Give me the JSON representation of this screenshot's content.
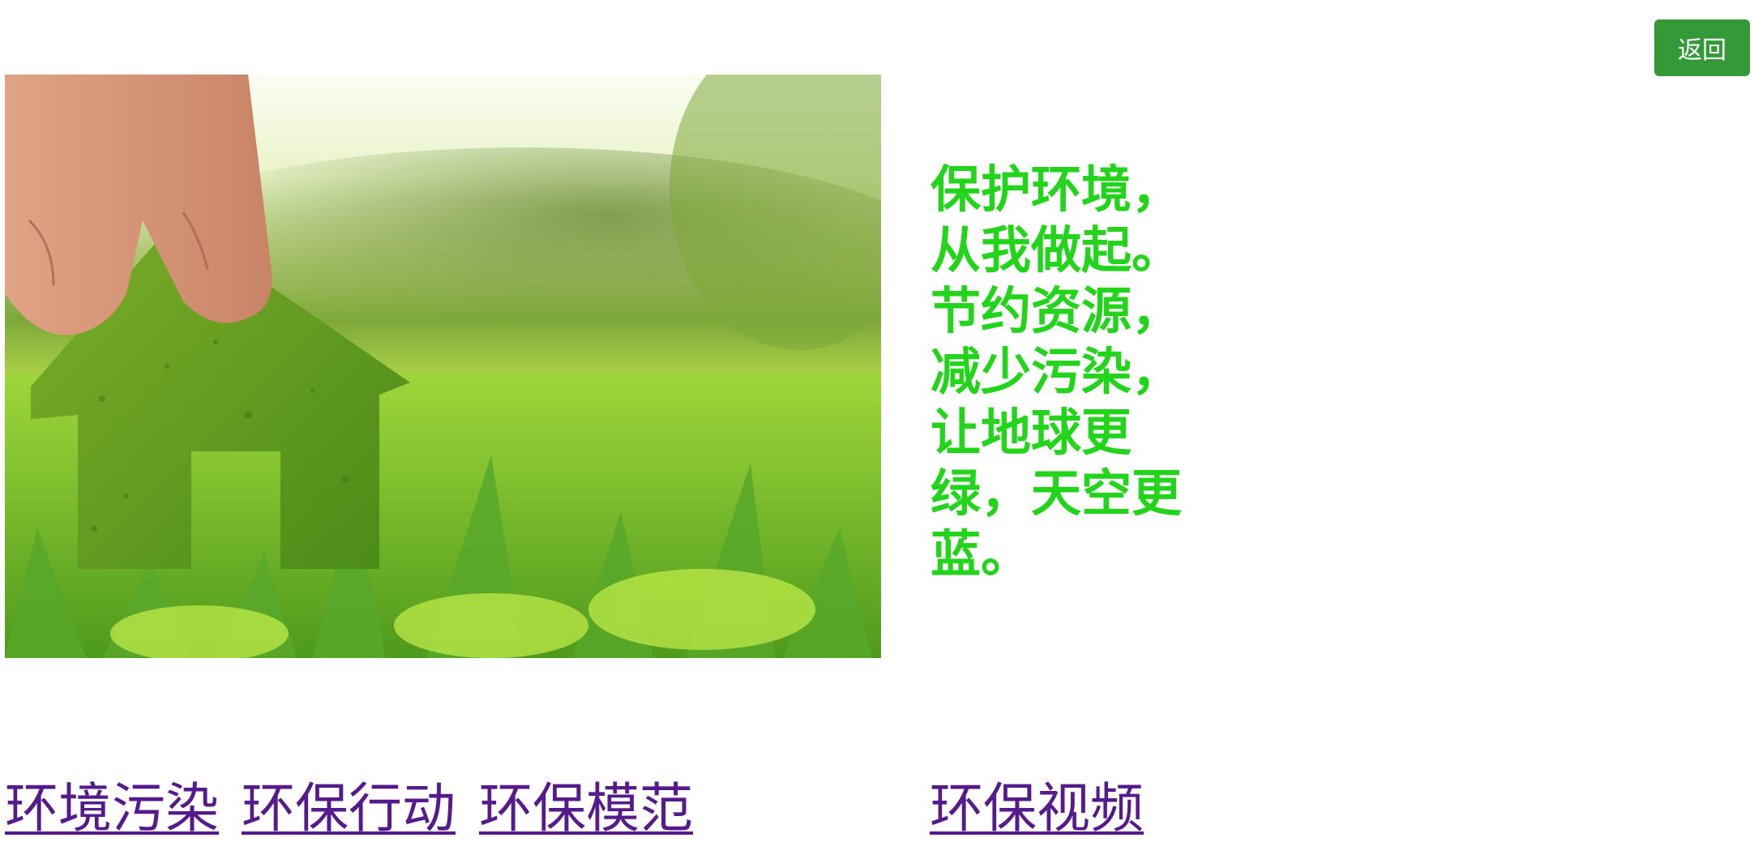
{
  "header": {
    "back_label": "返回"
  },
  "hero": {
    "image_alt": "grass-house-in-meadow-photo"
  },
  "slogan": {
    "text": "保护环境，从我做起。节约资源，减少污染，让地球更绿，天空更蓝。"
  },
  "nav": {
    "links": [
      {
        "label": "环境污染"
      },
      {
        "label": "环保行动"
      },
      {
        "label": "环保模范"
      },
      {
        "label": "环保视频"
      }
    ]
  },
  "colors": {
    "accent_green": "#349a38",
    "slogan_green": "#22d41a",
    "link_visited": "#551a8b"
  }
}
